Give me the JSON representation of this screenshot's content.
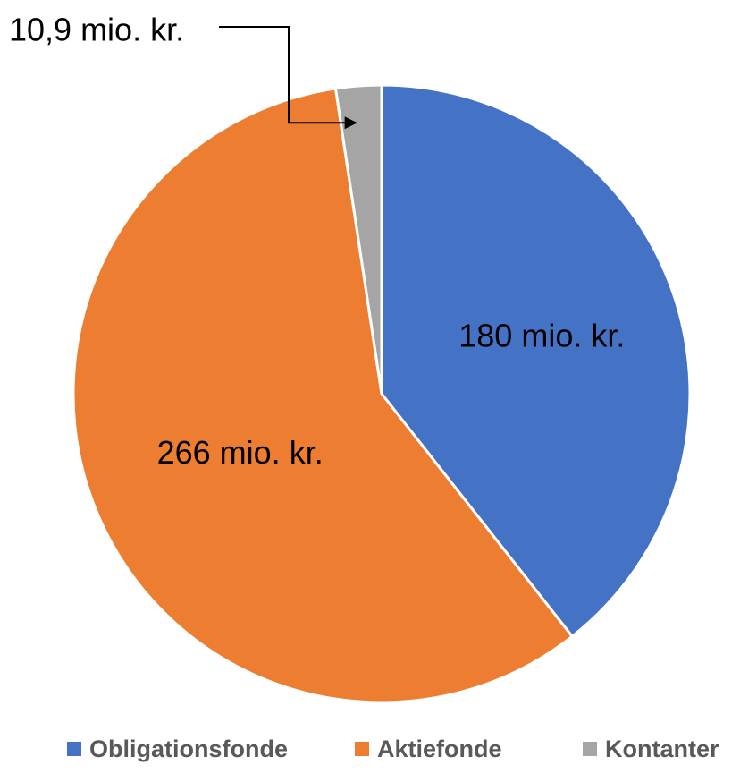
{
  "chart_data": {
    "type": "pie",
    "categories": [
      "Obligationsfonde",
      "Aktiefonde",
      "Kontanter"
    ],
    "values": [
      180,
      266,
      10.9
    ],
    "value_labels": [
      "180 mio. kr.",
      "266 mio. kr.",
      "10,9 mio. kr."
    ],
    "colors": [
      "#4472c4",
      "#ed7d31",
      "#a5a5a5"
    ],
    "legend": "bottom"
  }
}
